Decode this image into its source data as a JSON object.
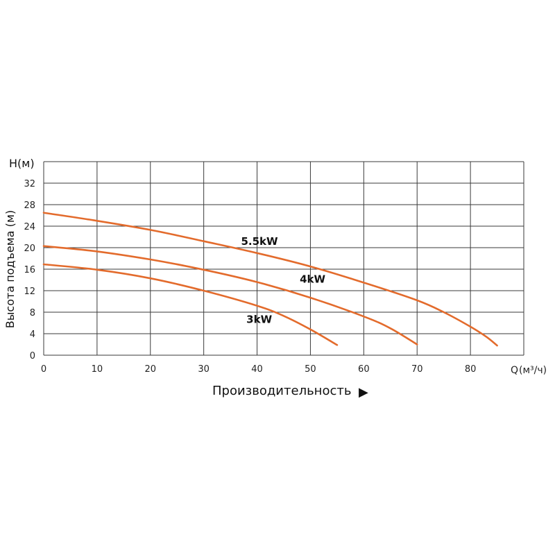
{
  "chart_data": {
    "type": "line",
    "title": "",
    "xlabel": "Q",
    "xlabel_units": "(м³/ч)",
    "ylabel": "Высота подъема (м)",
    "y_axis_top_label": "H(м)",
    "caption": "Производительность",
    "caption_arrow": "▶",
    "xlim": [
      0,
      90
    ],
    "ylim": [
      0,
      36
    ],
    "x_ticks": [
      0,
      10,
      20,
      30,
      40,
      50,
      60,
      70,
      80
    ],
    "x_tick_labels": [
      "0",
      "10",
      "20",
      "30",
      "40",
      "50",
      "60",
      "70",
      "80"
    ],
    "y_ticks": [
      0,
      4,
      8,
      12,
      16,
      20,
      24,
      28,
      32
    ],
    "y_tick_labels": [
      "0",
      "4",
      "8",
      "12",
      "16",
      "20",
      "24",
      "28",
      "32"
    ],
    "grid": true,
    "line_color": "#e36b2c",
    "series": [
      {
        "name": "5.5kW",
        "label_at": [
          37,
          20.5
        ],
        "points": [
          [
            0,
            26.5
          ],
          [
            10,
            25.0
          ],
          [
            20,
            23.3
          ],
          [
            30,
            21.2
          ],
          [
            40,
            19.0
          ],
          [
            50,
            16.5
          ],
          [
            60,
            13.5
          ],
          [
            70,
            10.2
          ],
          [
            75,
            8.0
          ],
          [
            80,
            5.3
          ],
          [
            83,
            3.4
          ],
          [
            85,
            1.8
          ]
        ]
      },
      {
        "name": "4kW",
        "label_at": [
          48,
          13.5
        ],
        "points": [
          [
            0,
            20.3
          ],
          [
            10,
            19.3
          ],
          [
            20,
            17.8
          ],
          [
            30,
            15.9
          ],
          [
            40,
            13.6
          ],
          [
            50,
            10.7
          ],
          [
            60,
            7.2
          ],
          [
            65,
            5.0
          ],
          [
            70,
            2.0
          ]
        ]
      },
      {
        "name": "3kW",
        "label_at": [
          38,
          6.0
        ],
        "points": [
          [
            0,
            16.9
          ],
          [
            10,
            15.9
          ],
          [
            20,
            14.3
          ],
          [
            30,
            12.0
          ],
          [
            40,
            9.2
          ],
          [
            45,
            7.3
          ],
          [
            50,
            4.8
          ],
          [
            55,
            1.9
          ]
        ]
      }
    ]
  }
}
